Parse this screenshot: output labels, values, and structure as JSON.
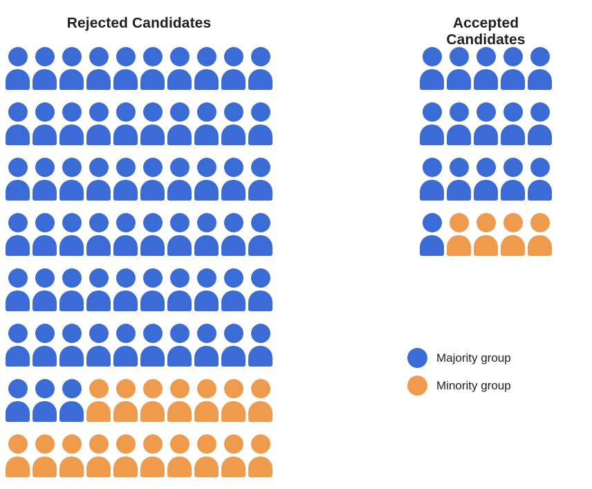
{
  "background": "#ffffff",
  "chart_data": {
    "type": "pictograph",
    "unit": "candidate",
    "icon": "person-icon",
    "groups": [
      {
        "title": "Rejected Candidates",
        "columns": 10,
        "rows": 8,
        "counts": {
          "majority": 63,
          "minority": 17
        },
        "total": 80,
        "fill_order": "majority-first, left-to-right, top-to-bottom"
      },
      {
        "title": "Accepted Candidates",
        "columns": 5,
        "rows": 4,
        "counts": {
          "majority": 16,
          "minority": 4
        },
        "total": 20,
        "fill_order": "majority-first, left-to-right, top-to-bottom"
      }
    ],
    "legend": [
      {
        "label": "Majority group",
        "series": "majority",
        "color": "#3B6CD6"
      },
      {
        "label": "Minority group",
        "series": "minority",
        "color": "#EF9B4D"
      }
    ],
    "legend_position": "right-middle",
    "grid": "off",
    "axes": "none"
  }
}
